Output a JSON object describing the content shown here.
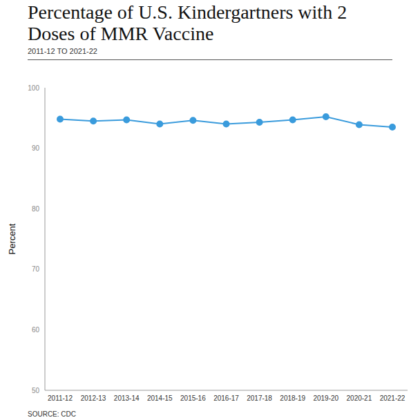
{
  "chart_data": {
    "type": "line",
    "title": "Percentage of U.S. Kindergartners with 2 Doses of MMR Vaccine",
    "subtitle": "2011-12 TO 2021-22",
    "y_label": "Percent",
    "source": "SOURCE: CDC",
    "categories": [
      "2011-12",
      "2012-13",
      "2013-14",
      "2014-15",
      "2015-16",
      "2016-17",
      "2017-18",
      "2018-19",
      "2019-20",
      "2020-21",
      "2021-22"
    ],
    "values": [
      94.8,
      94.5,
      94.7,
      94.0,
      94.6,
      94.0,
      94.3,
      94.7,
      95.2,
      93.9,
      93.5
    ],
    "color": "#3a9bdc",
    "ylim": [
      50,
      100
    ],
    "yticks": [
      50,
      60,
      70,
      80,
      90,
      100
    ],
    "grid": false,
    "marker": "circle"
  }
}
